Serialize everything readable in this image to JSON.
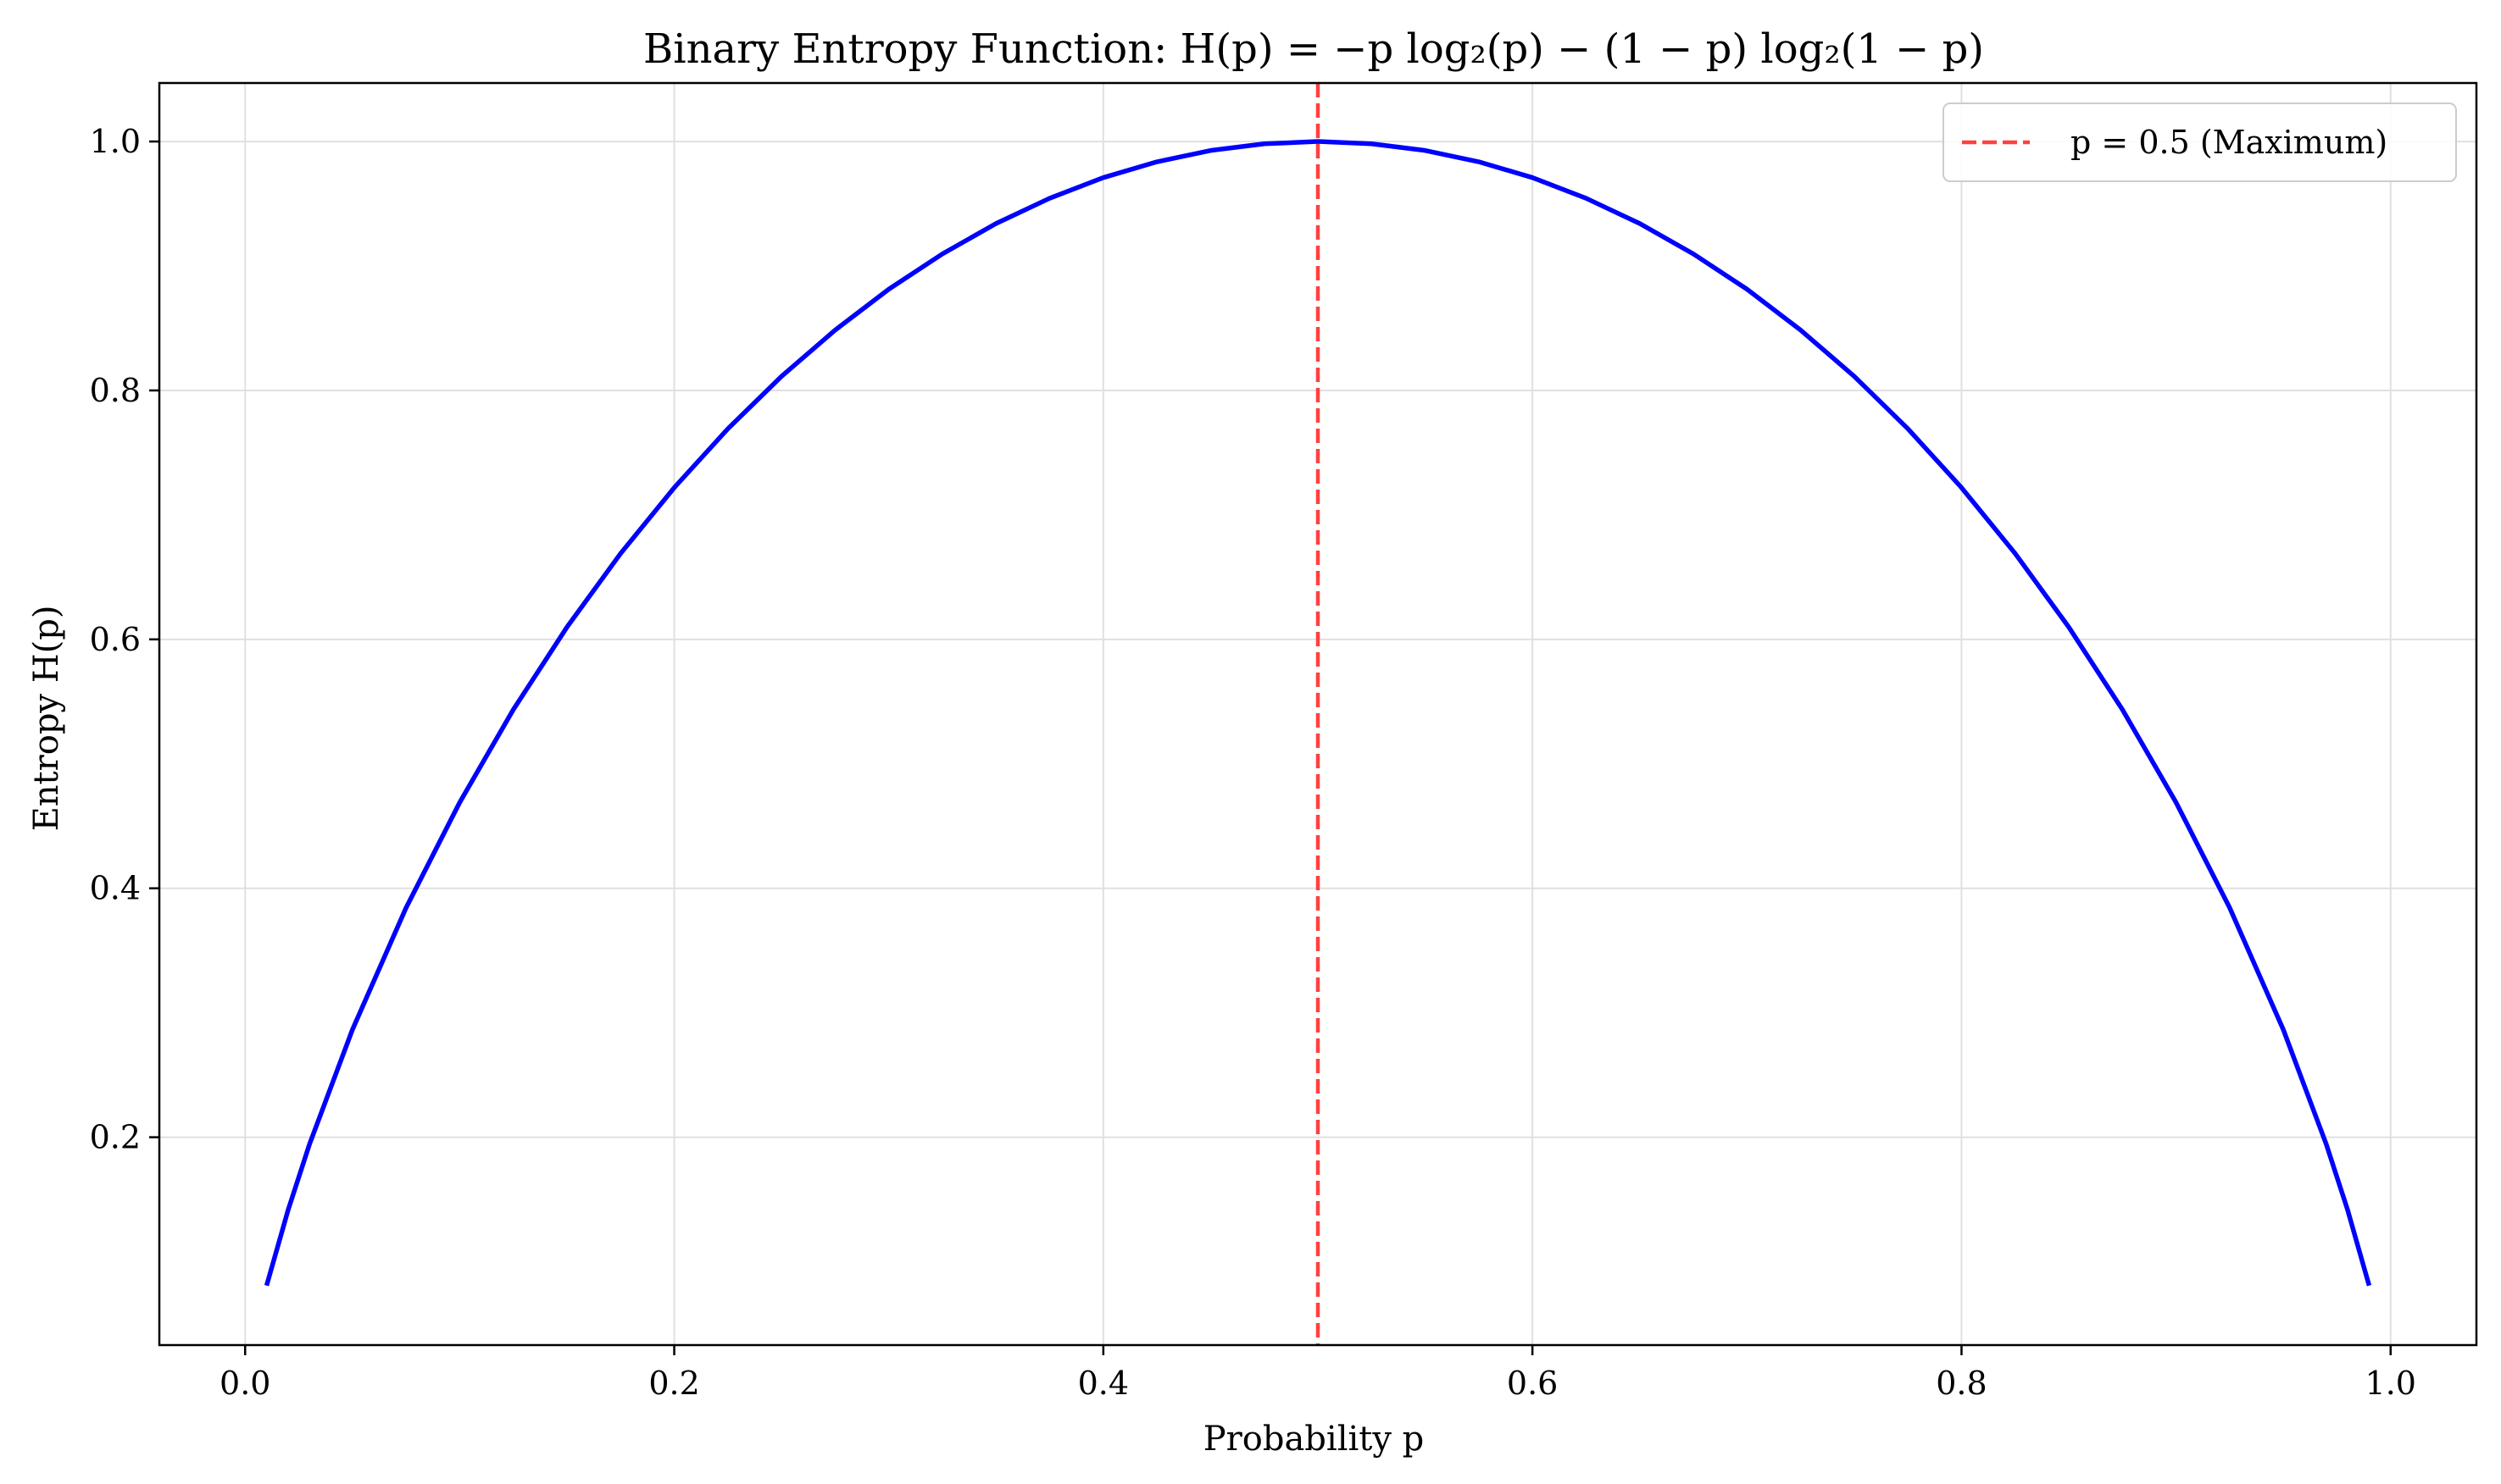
{
  "chart_data": {
    "type": "line",
    "title": "Binary Entropy Function: H(p) = −p log₂(p) − (1 − p) log₂(1 − p)",
    "xlabel": "Probability p",
    "ylabel": "Entropy H(p)",
    "xlim": [
      -0.04,
      1.04
    ],
    "ylim": [
      0.033,
      1.047
    ],
    "xticks": [
      0.0,
      0.2,
      0.4,
      0.6,
      0.8,
      1.0
    ],
    "xtick_labels": [
      "0.0",
      "0.2",
      "0.4",
      "0.6",
      "0.8",
      "1.0"
    ],
    "yticks": [
      0.2,
      0.4,
      0.6,
      0.8,
      1.0
    ],
    "ytick_labels": [
      "0.2",
      "0.4",
      "0.6",
      "0.8",
      "1.0"
    ],
    "grid": true,
    "legend_position": "top-right",
    "series": [
      {
        "function": "binary entropy",
        "color": "#0000ff",
        "x": [
          0.01,
          0.02,
          0.03,
          0.05,
          0.075,
          0.1,
          0.125,
          0.15,
          0.175,
          0.2,
          0.225,
          0.25,
          0.275,
          0.3,
          0.325,
          0.35,
          0.375,
          0.4,
          0.425,
          0.45,
          0.475,
          0.5,
          0.525,
          0.55,
          0.575,
          0.6,
          0.625,
          0.65,
          0.675,
          0.7,
          0.725,
          0.75,
          0.775,
          0.8,
          0.825,
          0.85,
          0.875,
          0.9,
          0.925,
          0.95,
          0.97,
          0.98,
          0.99
        ],
        "y": [
          0.0808,
          0.1414,
          0.1944,
          0.2864,
          0.3843,
          0.469,
          0.5436,
          0.6098,
          0.669,
          0.7219,
          0.7692,
          0.8113,
          0.8485,
          0.8813,
          0.9097,
          0.9341,
          0.9544,
          0.971,
          0.9837,
          0.9928,
          0.9982,
          1.0,
          0.9982,
          0.9928,
          0.9837,
          0.971,
          0.9544,
          0.9341,
          0.9097,
          0.8813,
          0.8485,
          0.8113,
          0.7692,
          0.7219,
          0.669,
          0.6098,
          0.5436,
          0.469,
          0.3843,
          0.2864,
          0.1944,
          0.1414,
          0.0808
        ]
      }
    ],
    "vlines": [
      {
        "x": 0.5,
        "name": "p = 0.5 (Maximum)",
        "color": "#ff4040",
        "style": "dashed"
      }
    ]
  },
  "colors": {
    "curve": "#0000ff",
    "vline": "#ff4040",
    "grid": "#e0e0e0",
    "axes": "#000000"
  }
}
